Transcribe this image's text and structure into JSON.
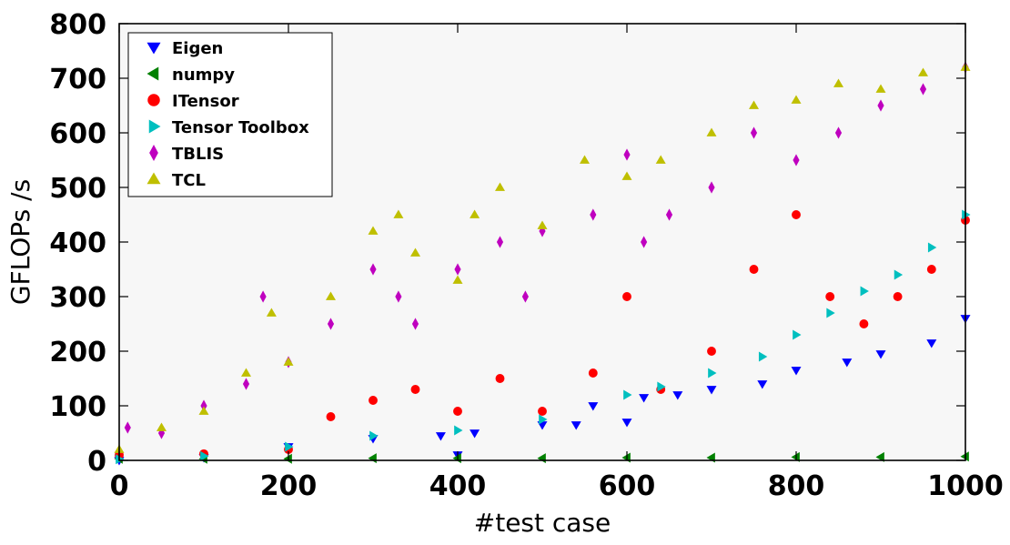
{
  "chart_data": {
    "type": "scatter",
    "title": "",
    "xlabel": "#test case",
    "ylabel": "GFLOPs /s",
    "xlim": [
      0,
      1000
    ],
    "ylim": [
      0,
      800
    ],
    "x_ticks": [
      0,
      200,
      400,
      600,
      800,
      1000
    ],
    "y_ticks": [
      0,
      100,
      200,
      300,
      400,
      500,
      600,
      700,
      800
    ],
    "grid": false,
    "legend_position": "top-left",
    "series": [
      {
        "name": "Eigen",
        "marker": "triangle-down",
        "color": "#0000ff",
        "x": [
          0,
          100,
          200,
          300,
          380,
          400,
          420,
          500,
          540,
          560,
          600,
          620,
          660,
          700,
          760,
          800,
          860,
          900,
          960,
          1000
        ],
        "y": [
          0,
          5,
          25,
          40,
          45,
          10,
          50,
          65,
          65,
          100,
          70,
          115,
          120,
          130,
          140,
          165,
          180,
          195,
          215,
          260
        ]
      },
      {
        "name": "numpy",
        "marker": "triangle-left",
        "color": "#008000",
        "x": [
          0,
          100,
          200,
          300,
          400,
          500,
          600,
          700,
          800,
          900,
          1000
        ],
        "y": [
          3,
          3,
          3,
          4,
          4,
          4,
          5,
          5,
          6,
          6,
          7
        ]
      },
      {
        "name": "ITensor",
        "marker": "circle",
        "color": "#ff0000",
        "x": [
          0,
          100,
          200,
          250,
          300,
          350,
          400,
          450,
          500,
          560,
          600,
          640,
          700,
          750,
          800,
          840,
          880,
          920,
          960,
          1000
        ],
        "y": [
          10,
          12,
          20,
          80,
          110,
          130,
          90,
          150,
          90,
          160,
          300,
          130,
          200,
          350,
          450,
          300,
          250,
          300,
          350,
          440
        ]
      },
      {
        "name": "Tensor Toolbox",
        "marker": "triangle-right",
        "color": "#00bfbf",
        "x": [
          0,
          100,
          200,
          300,
          400,
          500,
          600,
          640,
          700,
          760,
          800,
          840,
          880,
          920,
          960,
          1000
        ],
        "y": [
          2,
          8,
          25,
          45,
          55,
          75,
          120,
          135,
          160,
          190,
          230,
          270,
          310,
          340,
          390,
          450
        ]
      },
      {
        "name": "TBLIS",
        "marker": "diamond",
        "color": "#bf00bf",
        "x": [
          10,
          50,
          100,
          150,
          170,
          200,
          250,
          300,
          330,
          350,
          400,
          450,
          480,
          500,
          560,
          600,
          620,
          650,
          700,
          750,
          800,
          850,
          900,
          950,
          1000
        ],
        "y": [
          60,
          50,
          100,
          140,
          300,
          180,
          250,
          350,
          300,
          250,
          350,
          400,
          300,
          420,
          450,
          560,
          400,
          450,
          500,
          600,
          550,
          600,
          650,
          680,
          720
        ]
      },
      {
        "name": "TCL",
        "marker": "triangle-up",
        "color": "#bfbf00",
        "x": [
          0,
          50,
          100,
          150,
          180,
          200,
          250,
          300,
          330,
          350,
          400,
          420,
          450,
          500,
          550,
          600,
          640,
          700,
          750,
          800,
          850,
          900,
          950,
          1000
        ],
        "y": [
          20,
          60,
          90,
          160,
          270,
          180,
          300,
          420,
          450,
          380,
          330,
          450,
          500,
          430,
          550,
          520,
          550,
          600,
          650,
          660,
          690,
          680,
          710,
          720
        ]
      }
    ]
  }
}
